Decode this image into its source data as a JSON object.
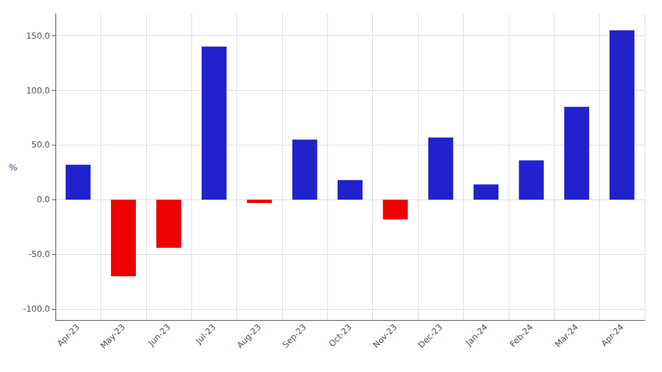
{
  "chart_data": {
    "type": "bar",
    "categories": [
      "Apr-23",
      "May-23",
      "Jun-23",
      "Jul-23",
      "Aug-23",
      "Sep-23",
      "Oct-23",
      "Nov-23",
      "Dec-23",
      "Jan-24",
      "Feb-24",
      "Mar-24",
      "Apr-24"
    ],
    "values": [
      32,
      -70,
      -44,
      140,
      -3,
      55,
      18,
      -18,
      57,
      14,
      36,
      85,
      155
    ],
    "colors": [
      "#2222cc",
      "#ee0000",
      "#ee0000",
      "#2222cc",
      "#ee0000",
      "#2222cc",
      "#2222cc",
      "#ee0000",
      "#2222cc",
      "#2222cc",
      "#2222cc",
      "#2222cc",
      "#2222cc"
    ],
    "ylabel": "%",
    "ylim": [
      -110,
      170
    ],
    "yticks": [
      {
        "value": -100,
        "label": "-100.0"
      },
      {
        "value": -50,
        "label": "-50.0"
      },
      {
        "value": 0,
        "label": "0.0"
      },
      {
        "value": 50,
        "label": "50.0"
      },
      {
        "value": 100,
        "label": "100.0"
      },
      {
        "value": 150,
        "label": "150.0"
      }
    ],
    "grid": true
  }
}
